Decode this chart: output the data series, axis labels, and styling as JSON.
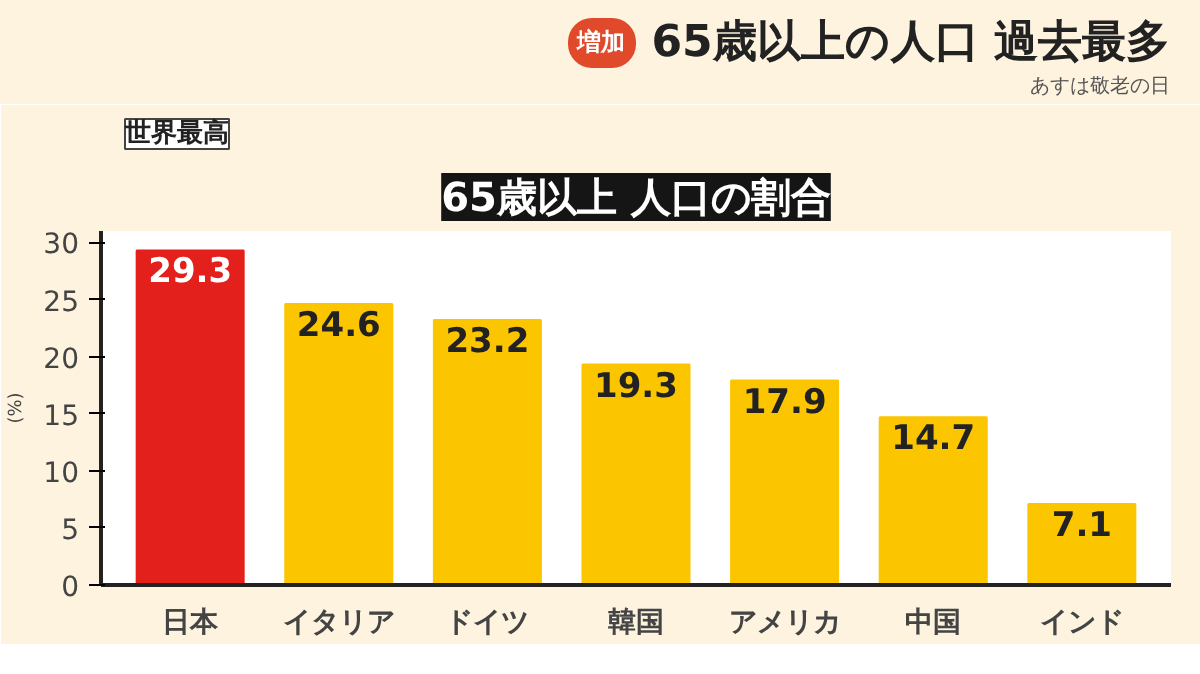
{
  "chart_data": {
    "type": "bar",
    "title": "65歳以上の人口 過去最多",
    "subtitle": "65歳以上 人口の割合",
    "ylabel": "(%)",
    "categories": [
      "日本",
      "イタリア",
      "ドイツ",
      "韓国",
      "アメリカ",
      "中国",
      "インド"
    ],
    "values": [
      29.3,
      24.6,
      23.2,
      19.3,
      17.9,
      14.7,
      7.1
    ],
    "colors": [
      "#e3201b",
      "#fbc500",
      "#fbc500",
      "#fbc500",
      "#fbc500",
      "#fbc500",
      "#fbc500"
    ],
    "ylim": [
      0,
      31
    ],
    "yticks": [
      0,
      5,
      10,
      15,
      20,
      25,
      30
    ],
    "grid": false,
    "data_labels": true,
    "annotations": [
      "増加",
      "あすは敬老の日",
      "世界最高"
    ]
  }
}
